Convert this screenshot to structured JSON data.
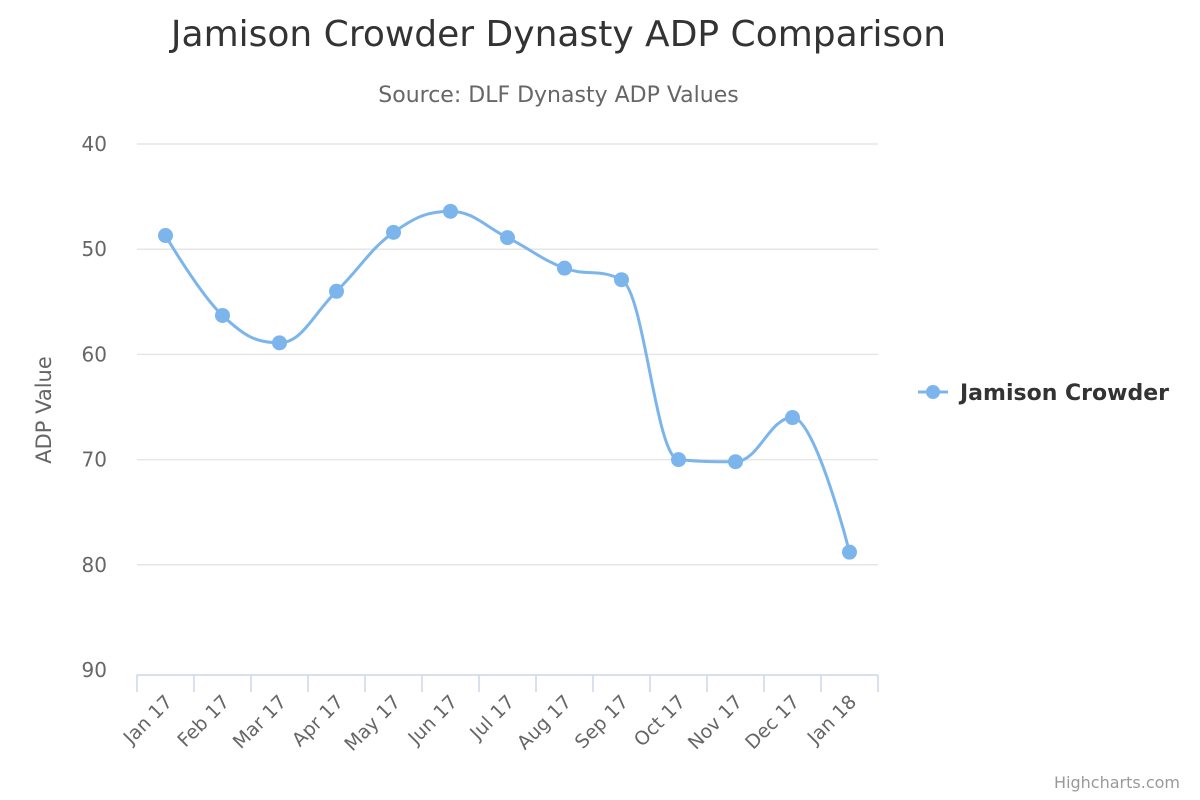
{
  "chart_data": {
    "type": "line",
    "title": "Jamison Crowder Dynasty ADP Comparison",
    "subtitle": "Source: DLF Dynasty ADP Values",
    "xlabel": "",
    "ylabel": "ADP Value",
    "ylim": [
      40,
      90
    ],
    "y_reversed": true,
    "yticks": [
      40,
      50,
      60,
      70,
      80,
      90
    ],
    "grid": true,
    "legend_position": "right",
    "categories": [
      "Jan 17",
      "Feb 17",
      "Mar 17",
      "Apr 17",
      "May 17",
      "Jun 17",
      "Jul 17",
      "Aug 17",
      "Sep 17",
      "Oct 17",
      "Nov 17",
      "Dec 17",
      "Jan 18"
    ],
    "series": [
      {
        "name": "Jamison Crowder",
        "color": "#7cb5ec",
        "values": [
          48.7,
          56.3,
          58.9,
          54.0,
          48.4,
          46.4,
          48.9,
          51.8,
          52.9,
          70.0,
          70.2,
          66.0,
          78.8
        ]
      }
    ],
    "credits": "Highcharts.com"
  }
}
